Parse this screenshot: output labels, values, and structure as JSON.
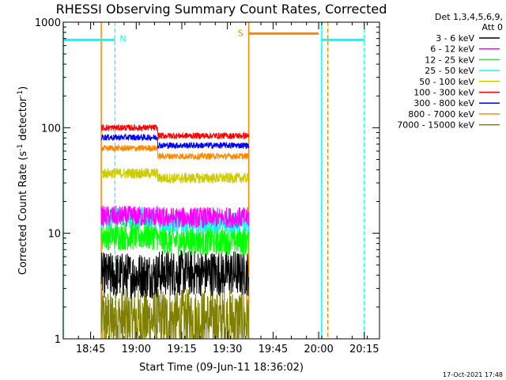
{
  "chart_data": {
    "type": "line",
    "title": "RHESSI Observing Summary Count Rates, Corrected",
    "xlabel": "Start Time (09-Jun-11 18:36:02)",
    "ylabel_main": "Corrected Count Rate (s",
    "ylabel_sup1": "-1",
    "ylabel_mid": " detector",
    "ylabel_sup2": "-1",
    "ylabel_end": ")",
    "yscale": "log",
    "ylim": [
      1,
      1000
    ],
    "xlim_min": [
      36.0,
      140.0
    ],
    "yticks": [
      {
        "value": 1,
        "label": "1"
      },
      {
        "value": 10,
        "label": "10"
      },
      {
        "value": 100,
        "label": "100"
      },
      {
        "value": 1000,
        "label": "1000"
      }
    ],
    "xticks": [
      {
        "value": 45,
        "label": "18:45"
      },
      {
        "value": 60,
        "label": "19:00"
      },
      {
        "value": 75,
        "label": "19:15"
      },
      {
        "value": 90,
        "label": "19:30"
      },
      {
        "value": 105,
        "label": "19:45"
      },
      {
        "value": 120,
        "label": "20:00"
      },
      {
        "value": 135,
        "label": "20:15"
      }
    ],
    "legend_header": [
      "Det 1,3,4,5,6,9,",
      "Att 0"
    ],
    "legend_position": "right",
    "series": [
      {
        "name": "3 - 6 keV",
        "color": "#000000",
        "level": 4.0,
        "start": 48.5,
        "end": 97,
        "noise": 0.22,
        "step": 1.05
      },
      {
        "name": "6 - 12 keV",
        "color": "#ff00ff",
        "level": 14.5,
        "start": 48.5,
        "end": 97,
        "noise": 0.1,
        "step": 0.97
      },
      {
        "name": "12 - 25 keV",
        "color": "#00ff00",
        "level": 9.5,
        "start": 48.5,
        "end": 97,
        "noise": 0.14,
        "step": 0.9
      },
      {
        "name": "25 - 50 keV",
        "color": "#00ffff",
        "level": 14.0,
        "start": 48.5,
        "end": 97,
        "noise": 0.1,
        "step": 0.9
      },
      {
        "name": "50 - 100 keV",
        "color": "#cccc00",
        "level": 37,
        "start": 48.5,
        "end": 97,
        "noise": 0.05,
        "step": 0.9
      },
      {
        "name": "100 - 300 keV",
        "color": "#ff0000",
        "level": 100,
        "start": 48.5,
        "end": 97,
        "noise": 0.03,
        "step": 0.84
      },
      {
        "name": "300 - 800 keV",
        "color": "#0000ff",
        "level": 81,
        "start": 48.5,
        "end": 97,
        "noise": 0.03,
        "step": 0.84
      },
      {
        "name": "800 - 7000 keV",
        "color": "#ff8800",
        "level": 64,
        "start": 48.5,
        "end": 97,
        "noise": 0.03,
        "step": 0.84
      },
      {
        "name": "7000 - 15000 keV",
        "color": "#808000",
        "level": 1.5,
        "start": 48.5,
        "end": 97,
        "noise": 0.3,
        "step": 1.0
      }
    ],
    "annotations": {
      "night_label": "N",
      "saa_label": "S",
      "night_bars": [
        [
          36,
          53
        ],
        [
          121,
          135
        ]
      ],
      "night_bar_value": 680,
      "saa_bar": [
        97,
        120
      ],
      "saa_bar_value": 780,
      "vlines_solid_cyan": [
        36,
        121
      ],
      "vlines_dashed_cyan": [
        53,
        135
      ],
      "vlines_solid_orange": [
        48.5,
        97
      ],
      "vlines_dashed_orange": [
        123
      ]
    }
  },
  "footer_date": "17-Oct-2021 17:48"
}
